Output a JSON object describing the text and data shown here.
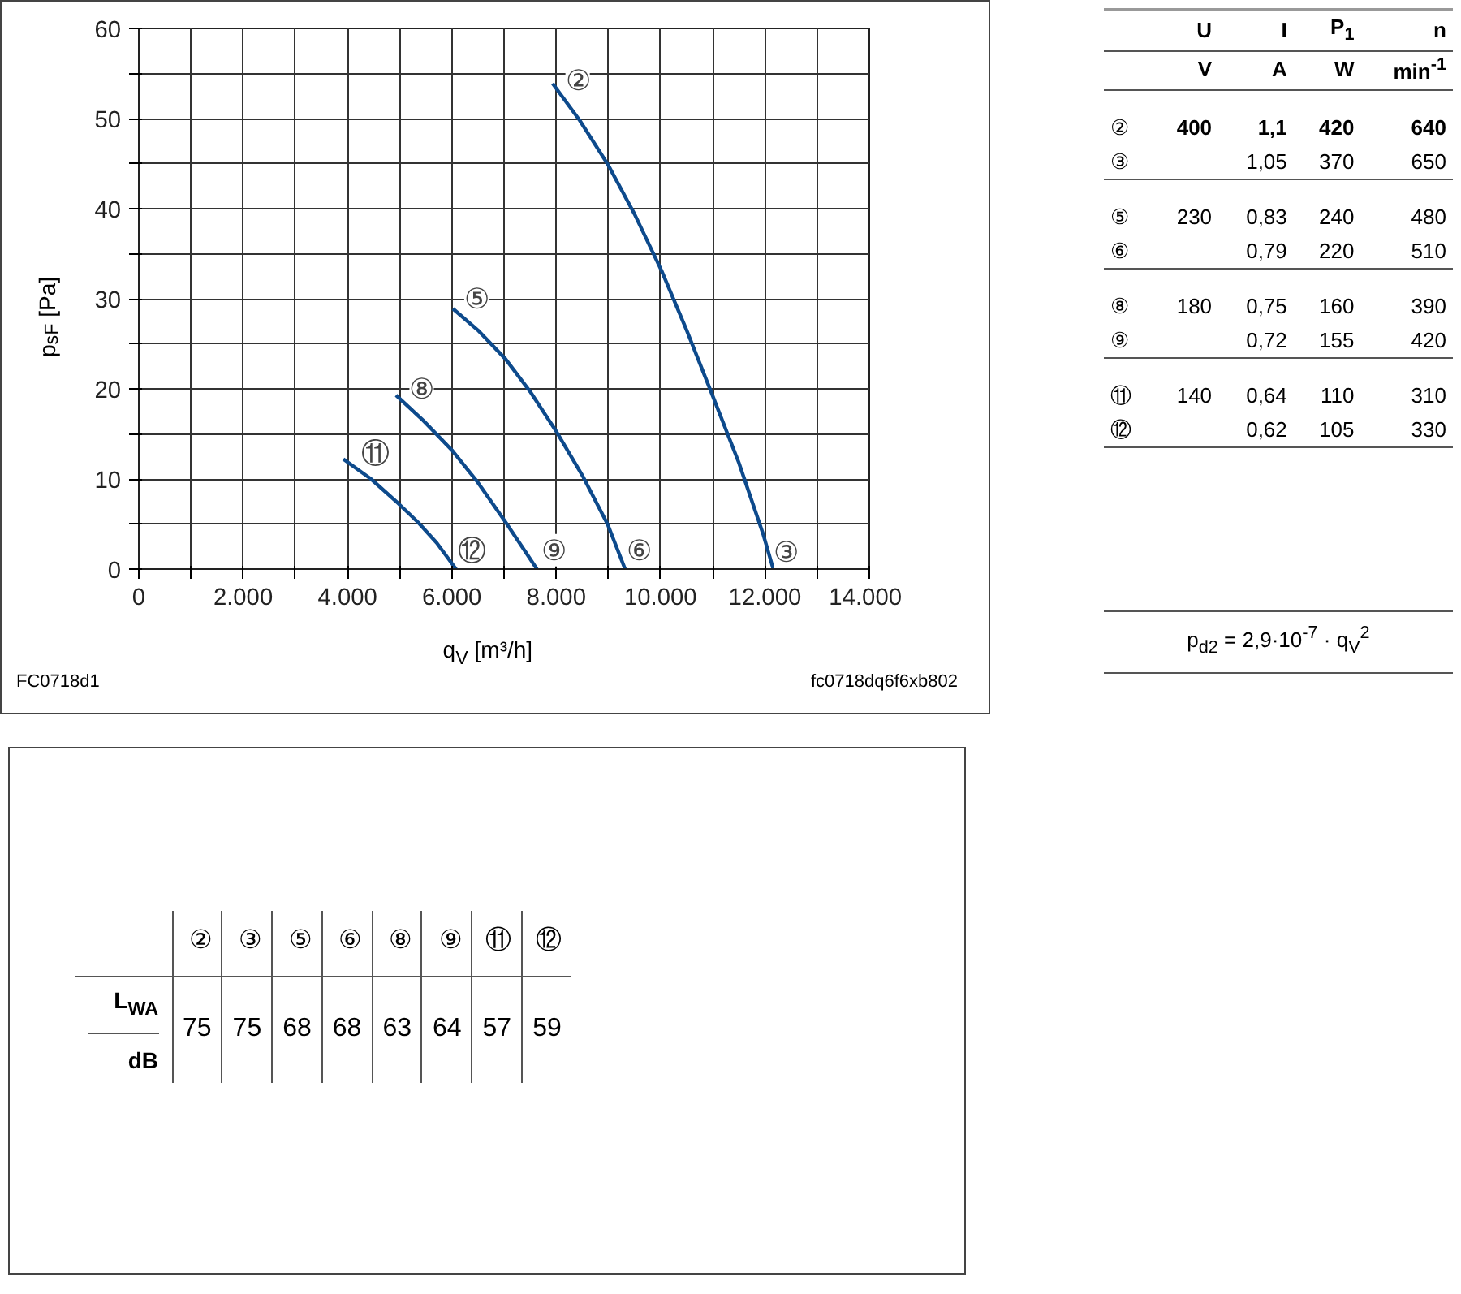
{
  "chart_data": [
    {
      "type": "line",
      "xlabel": "q$_{V}$ [m³/h]",
      "ylabel": "p$_{sF}$ [Pa]",
      "xlim": [
        0,
        14000
      ],
      "ylim": [
        0,
        60
      ],
      "xticks": [
        0,
        {
          "value": 1000,
          "label": null
        },
        {
          "value": 2000,
          "label": "2.000"
        },
        {
          "value": 3000,
          "label": null
        },
        {
          "value": 4000,
          "label": "4.000"
        },
        {
          "value": 5000,
          "label": null
        },
        {
          "value": 6000,
          "label": "6.000"
        },
        {
          "value": 7000,
          "label": null
        },
        {
          "value": 8000,
          "label": "8.000"
        },
        {
          "value": 9000,
          "label": null
        },
        {
          "value": 10000,
          "label": "10.000"
        },
        {
          "value": 11000,
          "label": null
        },
        {
          "value": 12000,
          "label": "12.000"
        },
        {
          "value": 13000,
          "label": null
        },
        {
          "value": 14000,
          "label": "14.000"
        }
      ],
      "yticks": [
        0,
        {
          "value": 5,
          "label": null
        },
        10,
        {
          "value": 15,
          "label": null
        },
        20,
        {
          "value": 25,
          "label": null
        },
        30,
        {
          "value": 35,
          "label": null
        },
        40,
        {
          "value": 45,
          "label": null
        },
        50,
        {
          "value": 55,
          "label": null
        },
        60
      ],
      "grid": true,
      "line_style": "solid",
      "marker": "none",
      "series": [
        {
          "color": "#0d4a8c",
          "x": [
            7930,
            8450,
            8990,
            9500,
            10020,
            10500,
            11000,
            11500,
            11970,
            12160
          ],
          "values": [
            53.9,
            49.8,
            44.9,
            39.4,
            33.1,
            26.5,
            19.2,
            11.8,
            3.8,
            0
          ]
        },
        {
          "color": "#0d4a8c",
          "x": [
            6020,
            6500,
            7030,
            7500,
            8010,
            8500,
            8990,
            9320
          ],
          "values": [
            28.9,
            26.5,
            23.3,
            19.7,
            15.2,
            10.4,
            4.9,
            0
          ]
        },
        {
          "color": "#0d4a8c",
          "x": [
            4930,
            5450,
            6000,
            6500,
            7030,
            7400,
            7630
          ],
          "values": [
            19.3,
            16.5,
            13.2,
            9.6,
            5.2,
            2.0,
            0
          ]
        },
        {
          "color": "#0d4a8c",
          "x": [
            3920,
            4450,
            4970,
            5350,
            5710,
            6080
          ],
          "values": [
            12.2,
            10.0,
            7.3,
            5.2,
            2.9,
            0
          ]
        }
      ],
      "annotations": [
        {
          "text": "②",
          "x": 8410,
          "y": 54.2
        },
        {
          "text": "③",
          "x": 12400,
          "y": 1.9
        },
        {
          "text": "⑤",
          "x": 6470,
          "y": 30
        },
        {
          "text": "⑥",
          "x": 9580,
          "y": 2.1
        },
        {
          "text": "⑧",
          "x": 5420,
          "y": 20
        },
        {
          "text": "⑨",
          "x": 7950,
          "y": 2.1
        },
        {
          "text": "⑪",
          "x": 4530,
          "y": 12.9
        },
        {
          "text": "⑫",
          "x": 6370,
          "y": 2.1
        },
        "FC0718d1",
        "fc0718dq6f6xb802"
      ]
    },
    {
      "type": "other",
      "annotations": [
        "U",
        "I",
        "P$_{1}$",
        "n",
        "V",
        "A",
        "W",
        "min$^{-1}$",
        "②",
        "400",
        "1,1",
        "420",
        "640",
        "③",
        "1,05",
        "370",
        "650",
        "⑤",
        "230",
        "0,83",
        "240",
        "480",
        "⑥",
        "0,79",
        "220",
        "510",
        "⑧",
        "180",
        "0,75",
        "160",
        "390",
        "⑨",
        "0,72",
        "155",
        "420",
        "⑪",
        "140",
        "0,64",
        "110",
        "310",
        "⑫",
        "0,62",
        "105",
        "330",
        "p$_{d2}$ = 2,9·10$^{-7}$ · q$_{V}$$^{2}$"
      ]
    },
    {
      "type": "other",
      "annotations": [
        "②",
        "③",
        "⑤",
        "⑥",
        "⑧",
        "⑨",
        "⑪",
        "⑫",
        "L$_{WA}$",
        "75",
        "75",
        "68",
        "68",
        "63",
        "64",
        "57",
        "59",
        "dB"
      ]
    }
  ]
}
